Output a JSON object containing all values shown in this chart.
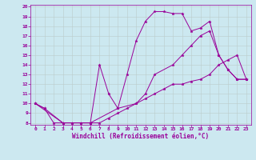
{
  "xlabel": "Windchill (Refroidissement éolien,°C)",
  "background_color": "#cce8f0",
  "line_color": "#990099",
  "grid_color": "#bbcccc",
  "xlim": [
    -0.5,
    23.5
  ],
  "ylim": [
    7.8,
    20.2
  ],
  "xticks": [
    0,
    1,
    2,
    3,
    4,
    5,
    6,
    7,
    8,
    9,
    10,
    11,
    12,
    13,
    14,
    15,
    16,
    17,
    18,
    19,
    20,
    21,
    22,
    23
  ],
  "yticks": [
    8,
    9,
    10,
    11,
    12,
    13,
    14,
    15,
    16,
    17,
    18,
    19,
    20
  ],
  "curves": [
    {
      "x": [
        0,
        1,
        3,
        4,
        5,
        6,
        7,
        8,
        9,
        10,
        11,
        12,
        13,
        14,
        15,
        16,
        17,
        18,
        19,
        20,
        21,
        22,
        23
      ],
      "y": [
        10,
        9.5,
        8,
        8,
        8,
        8,
        14,
        11,
        9.5,
        13,
        16.5,
        18.5,
        19.5,
        19.5,
        19.3,
        19.3,
        17.5,
        17.8,
        18.5,
        15,
        13.5,
        12.5,
        12.5
      ]
    },
    {
      "x": [
        0,
        1,
        2,
        3,
        4,
        5,
        6,
        7,
        8,
        9,
        10,
        11,
        12,
        13,
        14,
        15,
        16,
        17,
        18,
        19,
        20,
        21,
        22,
        23
      ],
      "y": [
        10,
        9.5,
        8,
        8,
        8,
        8,
        8,
        8,
        8.5,
        9,
        9.5,
        10,
        10.5,
        11,
        11.5,
        12,
        12,
        12.3,
        12.5,
        13,
        14,
        14.5,
        15,
        12.5
      ]
    },
    {
      "x": [
        0,
        3,
        6,
        9,
        11,
        12,
        13,
        15,
        16,
        17,
        18,
        19,
        20,
        21,
        22,
        23
      ],
      "y": [
        10,
        8,
        8,
        9.5,
        10,
        11,
        13,
        14,
        15,
        16,
        17,
        17.5,
        15,
        13.5,
        12.5,
        12.5
      ]
    }
  ],
  "xlabel_fontsize": 5.5,
  "tick_fontsize": 4.5,
  "linewidth": 0.7,
  "markersize": 2.5
}
